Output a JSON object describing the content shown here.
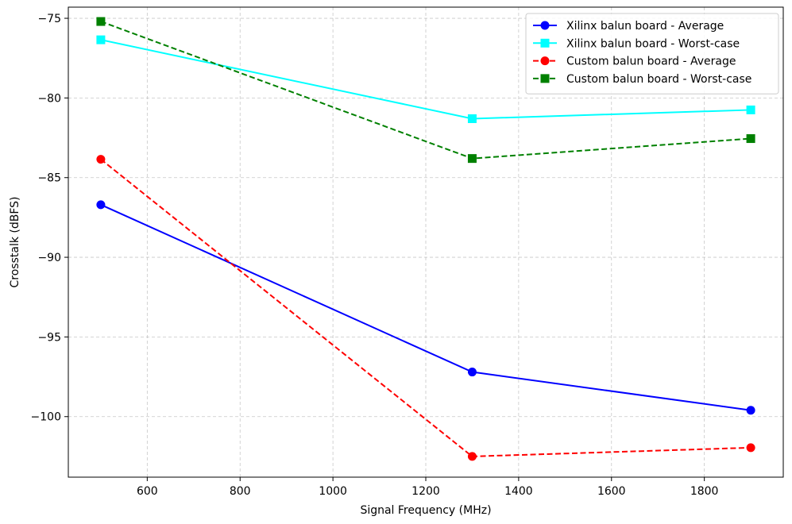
{
  "chart_data": {
    "type": "line",
    "title": "",
    "xlabel": "Signal Frequency (MHz)",
    "ylabel": "Crosstalk (dBFS)",
    "xlim": [
      430,
      1970
    ],
    "ylim": [
      -103.8,
      -74.3
    ],
    "xticks": [
      600,
      800,
      1000,
      1200,
      1400,
      1600,
      1800
    ],
    "yticks": [
      -75,
      -80,
      -85,
      -90,
      -95,
      -100
    ],
    "xtick_labels": [
      "600",
      "800",
      "1000",
      "1200",
      "1400",
      "1600",
      "1800"
    ],
    "ytick_labels": [
      "−75",
      "−80",
      "−85",
      "−90",
      "−95",
      "−100"
    ],
    "grid": true,
    "legend_position": "top-right",
    "x": [
      500,
      1300,
      1900
    ],
    "series": [
      {
        "name": "Xilinx balun board - Average",
        "values": [
          -86.7,
          -97.2,
          -99.6
        ],
        "color": "#0000ff",
        "marker": "circle",
        "linestyle": "solid"
      },
      {
        "name": "Xilinx balun board - Worst-case",
        "values": [
          -76.35,
          -81.3,
          -80.75
        ],
        "color": "#00ffff",
        "marker": "square",
        "linestyle": "solid"
      },
      {
        "name": "Custom balun board - Average",
        "values": [
          -83.85,
          -102.5,
          -101.95
        ],
        "color": "#ff0000",
        "marker": "circle",
        "linestyle": "dashed"
      },
      {
        "name": "Custom balun board - Worst-case",
        "values": [
          -75.2,
          -83.8,
          -82.55
        ],
        "color": "#008000",
        "marker": "square",
        "linestyle": "dashed"
      }
    ]
  }
}
